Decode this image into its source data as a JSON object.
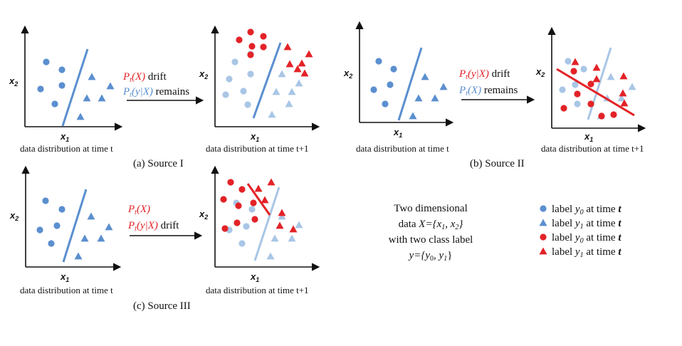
{
  "colors": {
    "blue": "#5b8fcf",
    "light_blue": "#a9c6e6",
    "red": "#e32227",
    "black": "#111111"
  },
  "axis_labels": {
    "x": "x",
    "x_sub": "1",
    "y": "x",
    "y_sub": "2"
  },
  "captions": {
    "time_t": "data distribution at time t",
    "time_t1": "data distribution at time t+1"
  },
  "sources": [
    {
      "title": "(a) Source I",
      "arrow_line1": {
        "text": "P",
        "sub": "t",
        "rest": "(X)",
        "suffix": " drift",
        "color": "red"
      },
      "arrow_line2": {
        "text": "P",
        "sub": "t",
        "rest": "(y|X)",
        "suffix": " remains",
        "color": "blue"
      }
    },
    {
      "title": "(b) Source II",
      "arrow_line1": {
        "text": "P",
        "sub": "t",
        "rest": "(y|X)",
        "suffix": " drift",
        "color": "red"
      },
      "arrow_line2": {
        "text": "P",
        "sub": "t",
        "rest": "(X)",
        "suffix": " remains",
        "color": "blue"
      }
    },
    {
      "title": "(c) Source III",
      "arrow_line1": {
        "text": "P",
        "sub": "t",
        "rest": "(X)",
        "suffix": "",
        "color": "red"
      },
      "arrow_line2": {
        "text": "P",
        "sub": "t",
        "rest": "(y|X)",
        "suffix": " drift",
        "color": "red"
      }
    }
  ],
  "description": {
    "line1": "Two dimensional",
    "line2_pre": "data ",
    "line2_math": "X={x",
    "line2_s1": "1",
    "line2_mid": ", x",
    "line2_s2": "2",
    "line2_end": "}",
    "line3": "with two class label",
    "line4_pre": "y={y",
    "line4_s0": "0",
    "line4_mid": ", y",
    "line4_s1": "1",
    "line4_end": "}"
  },
  "legend": [
    {
      "shape": "circle",
      "color": "blue",
      "label": "label ",
      "var": "y",
      "sub": "0",
      "suffix": " at time ",
      "t": "t"
    },
    {
      "shape": "triangle",
      "color": "blue",
      "label": "label ",
      "var": "y",
      "sub": "1",
      "suffix": " at time ",
      "t": "t"
    },
    {
      "shape": "circle",
      "color": "red",
      "label": "label ",
      "var": "y",
      "sub": "0",
      "suffix": " at time ",
      "t": "t"
    },
    {
      "shape": "triangle",
      "color": "red",
      "label": "label ",
      "var": "y",
      "sub": "1",
      "suffix": " at time ",
      "t": "t"
    }
  ]
}
